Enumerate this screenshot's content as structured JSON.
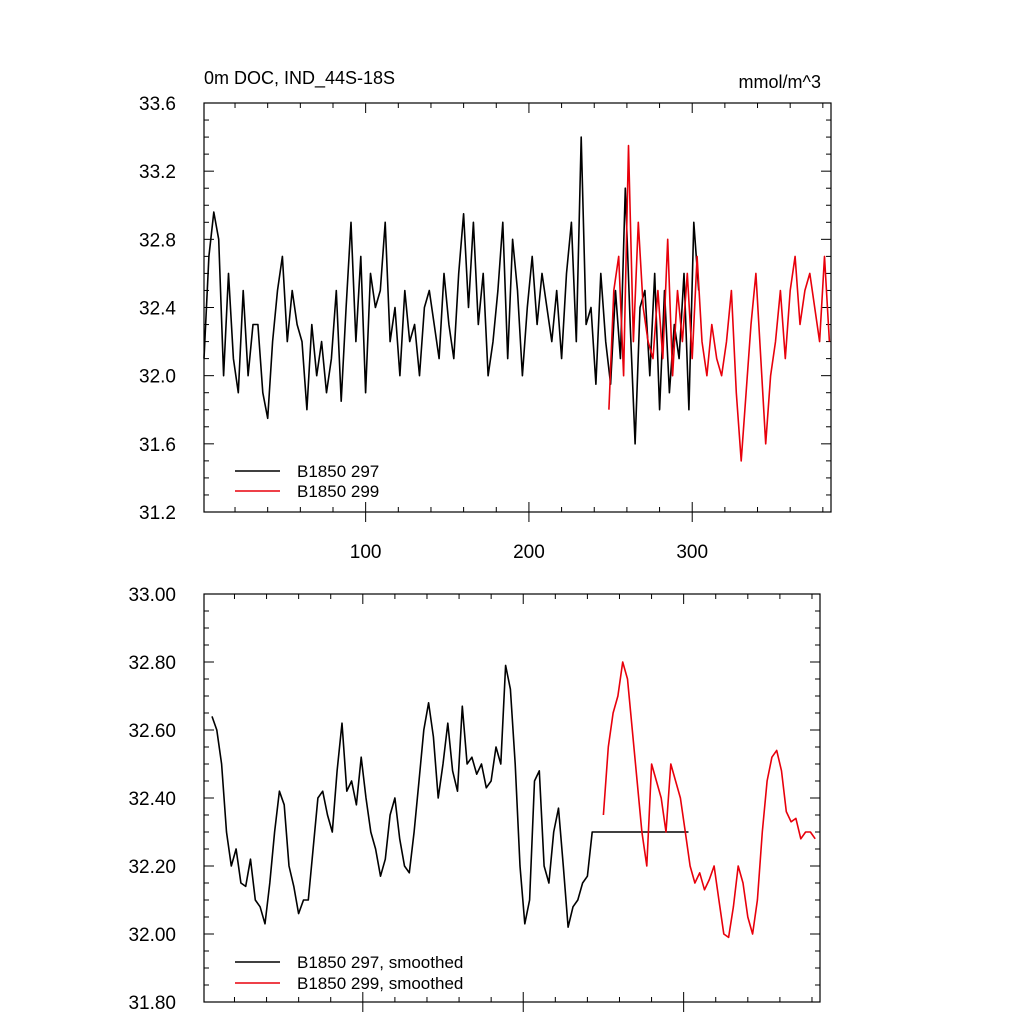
{
  "chart_data": [
    {
      "type": "line",
      "title": "0m DOC, IND_44S-18S",
      "units": "mmol/m^3",
      "xlim": [
        1,
        385
      ],
      "ylim": [
        31.2,
        33.6
      ],
      "yticks": [
        31.2,
        31.6,
        32.0,
        32.4,
        32.8,
        33.2,
        33.6
      ],
      "ytick_labels": [
        "31.2",
        "31.6",
        "32.0",
        "32.4",
        "32.8",
        "33.2",
        "33.6"
      ],
      "xticks": [
        100,
        200,
        300
      ],
      "xtick_labels": [
        "100",
        "200",
        "300"
      ],
      "legend_position": "lower-left",
      "series": [
        {
          "name": "B1850 297",
          "color": "#000000",
          "x": [
            1,
            4,
            7,
            10,
            13,
            16,
            19,
            22,
            25,
            28,
            31,
            34,
            37,
            40,
            43,
            46,
            49,
            52,
            55,
            58,
            61,
            64,
            67,
            70,
            73,
            76,
            79,
            82,
            85,
            88,
            91,
            94,
            97,
            100,
            103,
            106,
            109,
            112,
            115,
            118,
            121,
            124,
            127,
            130,
            133,
            136,
            139,
            142,
            145,
            148,
            151,
            154,
            157,
            160,
            163,
            166,
            169,
            172,
            175,
            178,
            181,
            184,
            187,
            190,
            193,
            196,
            199,
            202,
            205,
            208,
            211,
            214,
            217,
            220,
            223,
            226,
            229,
            232,
            235,
            238,
            241,
            244,
            247,
            250,
            253,
            256,
            259,
            262,
            265,
            268,
            271,
            274,
            277,
            280,
            283,
            286,
            289,
            292,
            295,
            298,
            301,
            304
          ],
          "y": [
            32.1,
            32.7,
            32.96,
            32.8,
            32.0,
            32.6,
            32.1,
            31.9,
            32.5,
            32.0,
            32.3,
            32.3,
            31.9,
            31.75,
            32.2,
            32.5,
            32.7,
            32.2,
            32.5,
            32.3,
            32.2,
            31.8,
            32.3,
            32.0,
            32.2,
            31.9,
            32.1,
            32.5,
            31.85,
            32.4,
            32.9,
            32.2,
            32.7,
            31.9,
            32.6,
            32.4,
            32.5,
            32.9,
            32.2,
            32.4,
            32.0,
            32.5,
            32.2,
            32.3,
            32.0,
            32.4,
            32.5,
            32.3,
            32.1,
            32.6,
            32.3,
            32.1,
            32.6,
            32.95,
            32.4,
            32.9,
            32.3,
            32.6,
            32.0,
            32.2,
            32.5,
            32.9,
            32.1,
            32.8,
            32.5,
            32.0,
            32.4,
            32.7,
            32.3,
            32.6,
            32.4,
            32.2,
            32.5,
            32.1,
            32.6,
            32.9,
            32.2,
            33.4,
            32.3,
            32.4,
            31.95,
            32.6,
            32.2,
            31.95,
            32.5,
            32.1,
            33.1,
            32.3,
            31.6,
            32.4,
            32.5,
            32.0,
            32.6,
            31.8,
            32.5,
            31.9,
            32.3,
            32.1,
            32.6,
            31.8,
            32.9,
            32.5
          ]
        },
        {
          "name": "B1850 299",
          "color": "#e8000b",
          "x": [
            249,
            252,
            255,
            258,
            261,
            264,
            267,
            270,
            273,
            276,
            279,
            282,
            285,
            288,
            291,
            294,
            297,
            300,
            303,
            306,
            309,
            312,
            315,
            318,
            321,
            324,
            327,
            330,
            333,
            336,
            339,
            342,
            345,
            348,
            351,
            354,
            357,
            360,
            363,
            366,
            369,
            372,
            375,
            378,
            381,
            384
          ],
          "y": [
            31.8,
            32.5,
            32.7,
            32.0,
            33.35,
            32.2,
            32.9,
            32.4,
            32.2,
            32.1,
            32.5,
            32.1,
            32.8,
            32.0,
            32.5,
            32.2,
            32.6,
            32.1,
            32.7,
            32.2,
            32.0,
            32.3,
            32.1,
            32.0,
            32.2,
            32.5,
            31.9,
            31.5,
            31.9,
            32.3,
            32.6,
            32.1,
            31.6,
            32.0,
            32.2,
            32.5,
            32.1,
            32.5,
            32.7,
            32.3,
            32.5,
            32.6,
            32.4,
            32.2,
            32.7,
            32.2
          ]
        }
      ]
    },
    {
      "type": "line",
      "title": "",
      "xlim": [
        1,
        385
      ],
      "ylim": [
        31.8,
        33.0
      ],
      "yticks": [
        31.8,
        32.0,
        32.2,
        32.4,
        32.6,
        32.8,
        33.0
      ],
      "ytick_labels": [
        "31.80",
        "32.00",
        "32.20",
        "32.40",
        "32.60",
        "32.80",
        "33.00"
      ],
      "xticks": [
        100,
        200,
        300
      ],
      "legend_position": "lower-left",
      "series": [
        {
          "name": "B1850 297, smoothed",
          "color": "#000000",
          "x": [
            6,
            9,
            12,
            15,
            18,
            21,
            24,
            27,
            30,
            33,
            36,
            39,
            42,
            45,
            48,
            51,
            54,
            57,
            60,
            63,
            66,
            69,
            72,
            75,
            78,
            81,
            84,
            87,
            90,
            93,
            96,
            99,
            102,
            105,
            108,
            111,
            114,
            117,
            120,
            123,
            126,
            129,
            132,
            135,
            138,
            141,
            144,
            147,
            150,
            153,
            156,
            159,
            162,
            165,
            168,
            171,
            174,
            177,
            180,
            183,
            186,
            189,
            192,
            195,
            198,
            201,
            204,
            207,
            210,
            213,
            216,
            219,
            222,
            225,
            228,
            231,
            234,
            237,
            240,
            243,
            246,
            249,
            252,
            255,
            258,
            261,
            264,
            267,
            270,
            273,
            276,
            279,
            282,
            285,
            288,
            291,
            294,
            297,
            300,
            303
          ],
          "y": [
            32.64,
            32.6,
            32.5,
            32.3,
            32.2,
            32.25,
            32.15,
            32.14,
            32.22,
            32.1,
            32.08,
            32.03,
            32.15,
            32.3,
            32.42,
            32.38,
            32.2,
            32.14,
            32.06,
            32.1,
            32.1,
            32.25,
            32.4,
            32.42,
            32.35,
            32.3,
            32.48,
            32.62,
            32.42,
            32.45,
            32.38,
            32.52,
            32.4,
            32.3,
            32.25,
            32.17,
            32.22,
            32.35,
            32.4,
            32.28,
            32.2,
            32.18,
            32.3,
            32.45,
            32.6,
            32.68,
            32.58,
            32.4,
            32.5,
            32.62,
            32.48,
            32.42,
            32.67,
            32.5,
            32.52,
            32.47,
            32.5,
            32.43,
            32.45,
            32.55,
            32.5,
            32.79,
            32.72,
            32.5,
            32.2,
            32.03,
            32.1,
            32.45,
            32.48,
            32.2,
            32.15,
            32.3,
            32.37,
            32.2,
            32.02,
            32.08,
            32.1,
            32.15,
            32.17,
            32.3,
            32.3,
            32.3,
            32.3,
            32.3,
            32.3,
            32.3,
            32.3,
            32.3,
            32.3,
            32.3,
            32.3,
            32.3,
            32.3,
            32.3,
            32.3,
            32.3,
            32.3,
            32.3,
            32.3,
            32.3
          ]
        },
        {
          "name": "B1850 299, smoothed",
          "color": "#e8000b",
          "x": [
            250,
            253,
            256,
            259,
            262,
            265,
            268,
            271,
            274,
            277,
            280,
            283,
            286,
            289,
            292,
            295,
            298,
            301,
            304,
            307,
            310,
            313,
            316,
            319,
            322,
            325,
            328,
            331,
            334,
            337,
            340,
            343,
            346,
            349,
            352,
            355,
            358,
            361,
            364,
            367,
            370,
            373,
            376,
            379,
            382
          ],
          "y": [
            32.35,
            32.55,
            32.65,
            32.7,
            32.8,
            32.75,
            32.6,
            32.45,
            32.3,
            32.2,
            32.5,
            32.45,
            32.4,
            32.3,
            32.5,
            32.45,
            32.4,
            32.3,
            32.2,
            32.15,
            32.18,
            32.13,
            32.16,
            32.2,
            32.1,
            32.0,
            31.99,
            32.08,
            32.2,
            32.15,
            32.05,
            32.0,
            32.1,
            32.3,
            32.45,
            32.52,
            32.54,
            32.48,
            32.36,
            32.33,
            32.34,
            32.28,
            32.3,
            32.3,
            32.28
          ]
        }
      ]
    }
  ]
}
